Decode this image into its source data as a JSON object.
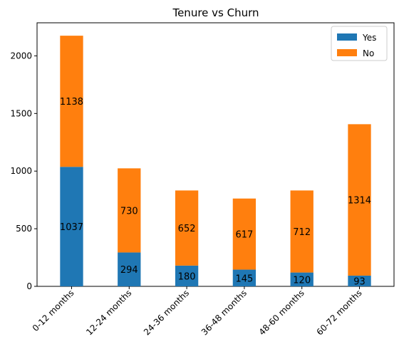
{
  "chart_data": {
    "type": "bar",
    "stacked": true,
    "title": "Tenure vs Churn",
    "xlabel": "",
    "ylabel": "",
    "categories": [
      "0-12 months",
      "12-24 months",
      "24-36 months",
      "36-48 months",
      "48-60 months",
      "60-72 months"
    ],
    "series": [
      {
        "name": "Yes",
        "color": "#1f77b4",
        "values": [
          1037,
          294,
          180,
          145,
          120,
          93
        ]
      },
      {
        "name": "No",
        "color": "#ff7f0e",
        "values": [
          1138,
          730,
          652,
          617,
          712,
          1314
        ]
      }
    ],
    "ylim": [
      0,
      2287
    ],
    "yticks": [
      0,
      500,
      1000,
      1500,
      2000
    ],
    "grid": false,
    "legend_position": "top-right",
    "xtick_rotation": -45
  }
}
